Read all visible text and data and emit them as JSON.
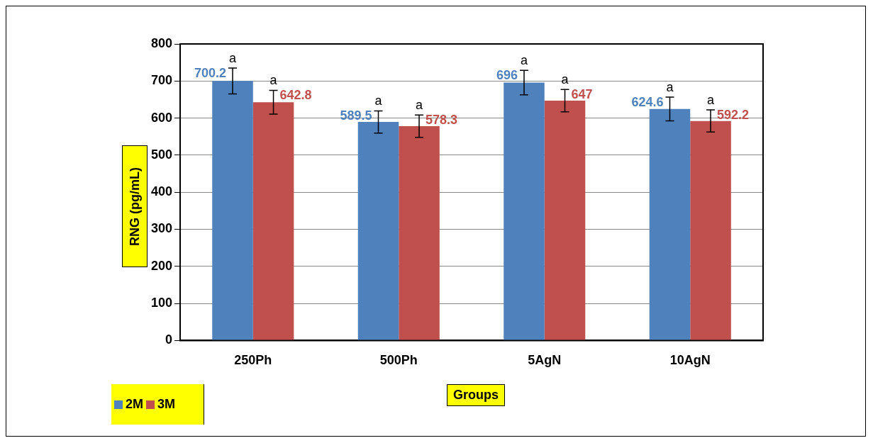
{
  "chart_data": {
    "type": "bar",
    "xlabel": "Groups",
    "ylabel": "RNG (pg/mL)",
    "categories": [
      "250Ph",
      "500Ph",
      "5AgN",
      "10AgN"
    ],
    "series": [
      {
        "name": "2M",
        "color": "#4f81bd",
        "values": [
          700.2,
          589.5,
          696,
          624.6
        ],
        "errors": [
          35,
          30,
          33,
          32
        ]
      },
      {
        "name": "3M",
        "color": "#c0504d",
        "values": [
          642.8,
          578.3,
          647,
          592.2
        ],
        "errors": [
          32,
          30,
          30,
          30
        ]
      }
    ],
    "ylim": [
      0,
      800
    ],
    "yticks": [
      0,
      100,
      200,
      300,
      400,
      500,
      600,
      700,
      800
    ],
    "grid": "y",
    "legend": "bottom left",
    "data_labels": true,
    "annotations": [
      "a",
      "a",
      "a",
      "a",
      "a",
      "a",
      "a",
      "a"
    ]
  }
}
